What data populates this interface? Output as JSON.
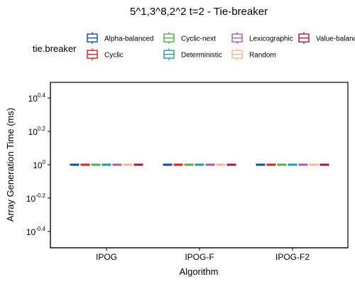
{
  "chart_data": {
    "type": "box",
    "title": "5^1,3^8,2^2 t=2 - Tie-breaker",
    "xlabel": "Algorithm",
    "ylabel": "Array Generation Time (ms)",
    "y_scale": "log10",
    "ylim": [
      0.79,
      1.26
    ],
    "y_ticks": [
      {
        "value": 0.398,
        "base": "10",
        "exp": "-0.4"
      },
      {
        "value": 0.631,
        "base": "10",
        "exp": "-0.2"
      },
      {
        "value": 1.0,
        "base": "10",
        "exp": "0"
      },
      {
        "value": 1.585,
        "base": "10",
        "exp": "0.2"
      },
      {
        "value": 2.512,
        "base": "10",
        "exp": "0.4"
      }
    ],
    "categories": [
      "IPOG",
      "IPOG-F",
      "IPOG-F2"
    ],
    "legend": {
      "title": "tie.breaker",
      "position": "top"
    },
    "series": [
      {
        "name": "Alpha-balanced",
        "color": "#08519c",
        "values": [
          1,
          1,
          1
        ]
      },
      {
        "name": "Cyclic",
        "color": "#e41a1c",
        "values": [
          1,
          1,
          1
        ]
      },
      {
        "name": "Cyclic-next",
        "color": "#4daf4a",
        "values": [
          1,
          1,
          1
        ]
      },
      {
        "name": "Deterministic",
        "color": "#1b9aaa",
        "values": [
          1,
          1,
          1
        ]
      },
      {
        "name": "Lexicographic",
        "color": "#9e5fb5",
        "values": [
          1,
          1,
          1
        ]
      },
      {
        "name": "Random",
        "color": "#fdb48c",
        "values": [
          1,
          1,
          1
        ]
      },
      {
        "name": "Value-balanced",
        "color": "#b2123c",
        "values": [
          1,
          1,
          1
        ]
      }
    ]
  }
}
